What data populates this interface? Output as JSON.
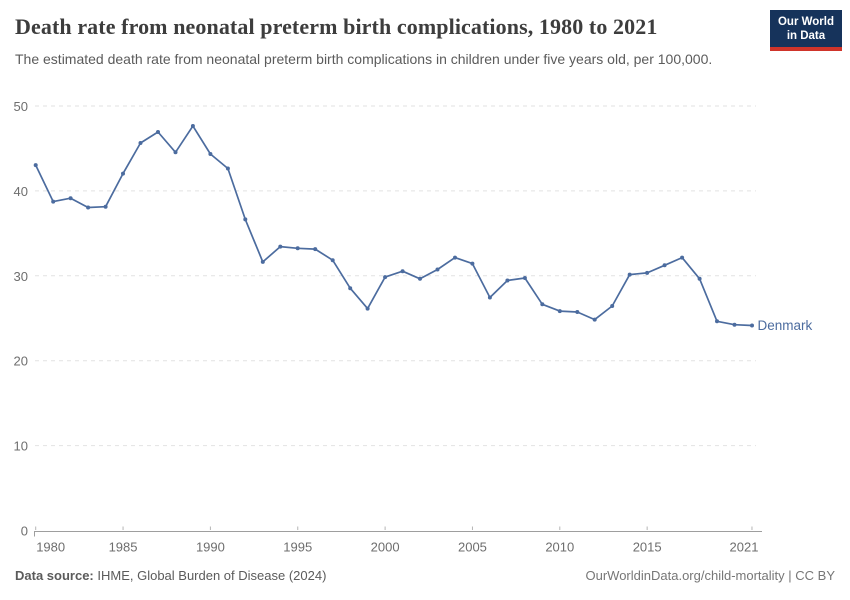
{
  "header": {
    "title": "Death rate from neonatal preterm birth complications, 1980 to 2021",
    "subtitle": "The estimated death rate from neonatal preterm birth complications in children under five years old, per 100,000.",
    "logo": {
      "line1": "Our World",
      "line2": "in Data"
    }
  },
  "chart_data": {
    "type": "line",
    "title": "Death rate from neonatal preterm birth complications, 1980 to 2021",
    "subtitle": "The estimated death rate from neonatal preterm birth complications in children under five years old, per 100,000.",
    "xlabel": "",
    "ylabel": "",
    "xlim": [
      1980,
      2021
    ],
    "ylim": [
      0,
      50
    ],
    "x_ticks": [
      1980,
      1985,
      1990,
      1995,
      2000,
      2005,
      2010,
      2015,
      2021
    ],
    "y_ticks": [
      0,
      10,
      20,
      30,
      40,
      50
    ],
    "grid": "horizontal dashed",
    "legend_position": "end-of-line label",
    "series": [
      {
        "name": "Denmark",
        "color": "#4c6c9f",
        "x": [
          1980,
          1981,
          1982,
          1983,
          1984,
          1985,
          1986,
          1987,
          1988,
          1989,
          1990,
          1991,
          1992,
          1993,
          1994,
          1995,
          1996,
          1997,
          1998,
          1999,
          2000,
          2001,
          2002,
          2003,
          2004,
          2005,
          2006,
          2007,
          2008,
          2009,
          2010,
          2011,
          2012,
          2013,
          2014,
          2015,
          2016,
          2017,
          2018,
          2019,
          2020,
          2021
        ],
        "values": [
          43.1,
          38.8,
          39.2,
          38.1,
          38.2,
          42.1,
          45.7,
          47.0,
          44.6,
          47.7,
          44.4,
          42.7,
          36.7,
          31.7,
          33.5,
          33.3,
          33.2,
          31.9,
          28.6,
          26.2,
          29.9,
          30.6,
          29.7,
          30.8,
          32.2,
          31.5,
          27.5,
          29.5,
          29.8,
          26.7,
          25.9,
          25.8,
          24.9,
          26.5,
          30.2,
          30.4,
          31.3,
          32.2,
          29.7,
          24.7,
          24.3,
          24.2
        ]
      }
    ]
  },
  "footer": {
    "datasource_label": "Data source:",
    "datasource_value": " IHME, Global Burden of Disease (2024)",
    "link": "OurWorldinData.org/child-mortality | CC BY"
  },
  "colors": {
    "line": "#4c6c9f",
    "grid": "#e2e2e2",
    "axis": "#9e9e9e",
    "tick": "#b5b5b5",
    "tick_label": "#6e6e6e",
    "title_text": "#3d3d3d",
    "subtitle_text": "#5b5b5b",
    "logo_bg": "#16335b",
    "logo_red": "#cf342a"
  }
}
